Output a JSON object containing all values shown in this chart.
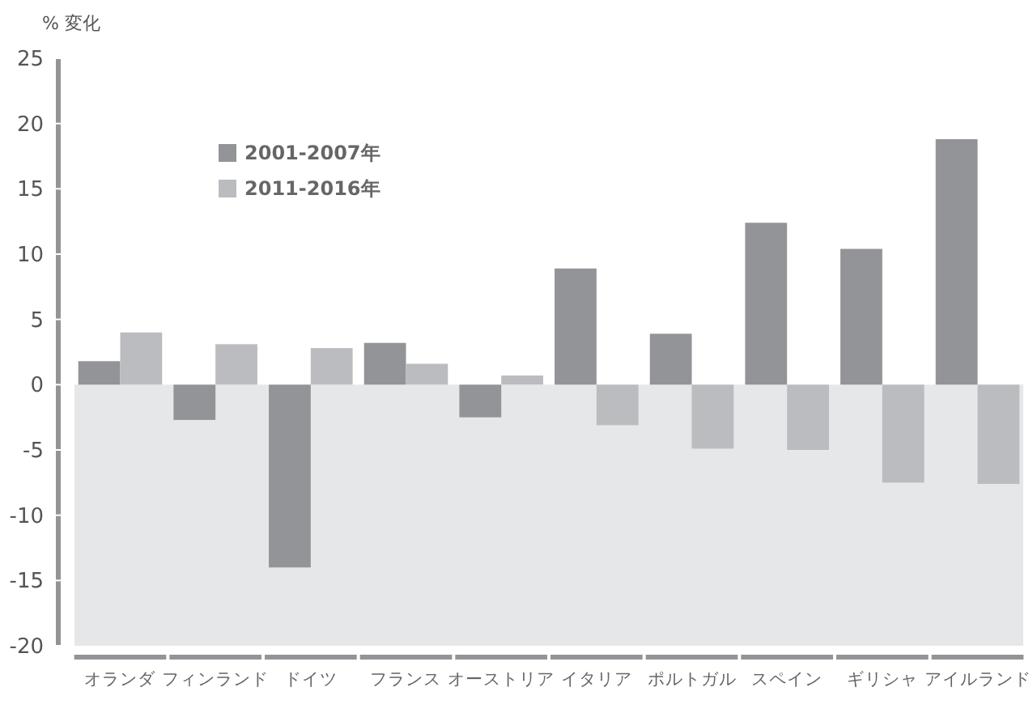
{
  "chart_data": {
    "type": "bar",
    "ylabel": "% 変化",
    "categories": [
      "オランダ",
      "フィンランド",
      "ドイツ",
      "フランス",
      "オーストリア",
      "イタリア",
      "ポルトガル",
      "スペイン",
      "ギリシャ",
      "アイルランド"
    ],
    "series": [
      {
        "name": "2001-2007年",
        "color": "#939497",
        "values": [
          1.8,
          -2.7,
          -14,
          3.2,
          -2.5,
          8.9,
          3.9,
          12.4,
          10.4,
          18.8
        ]
      },
      {
        "name": "2011-2016年",
        "color": "#bbbcbf",
        "values": [
          4.0,
          3.1,
          2.8,
          1.6,
          0.7,
          -3.1,
          -4.9,
          -5.0,
          -7.5,
          -7.6
        ]
      }
    ],
    "ylim": [
      -20,
      25
    ],
    "yticks": [
      -20,
      -15,
      -10,
      -5,
      0,
      5,
      10,
      15,
      20,
      25
    ],
    "bands": [
      {
        "axis": "y",
        "from": -20,
        "to": 0,
        "color": "#e6e7e9"
      }
    ],
    "legend": "top left",
    "grid": false
  }
}
